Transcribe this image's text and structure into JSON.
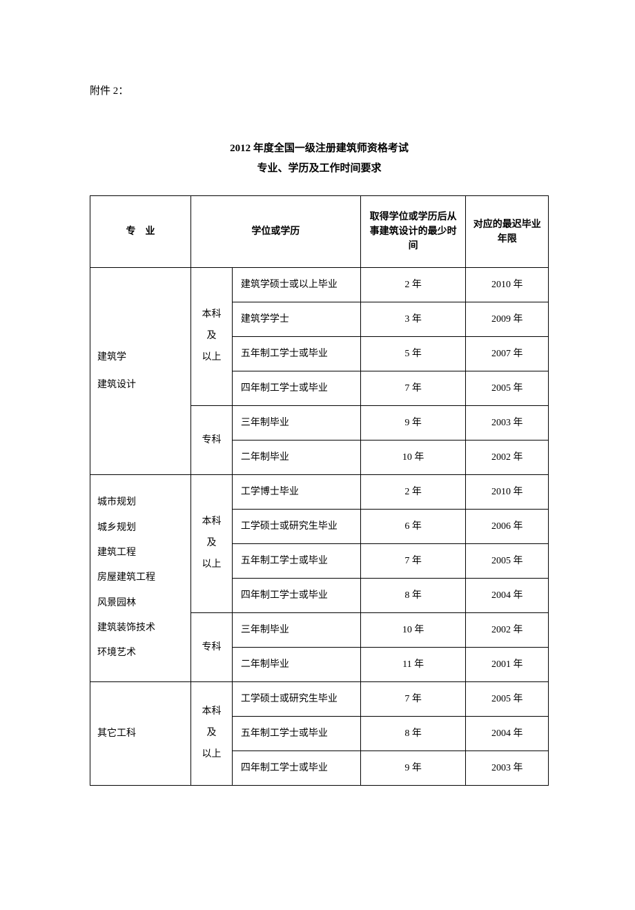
{
  "attachment_label": "附件 2：",
  "title_line1": "2012 年度全国一级注册建筑师资格考试",
  "title_line2": "专业、学历及工作时间要求",
  "header": {
    "major": "专　业",
    "degree": "学位或学历",
    "years": "取得学位或学历后从事建筑设计的最少时间",
    "latest": "对应的最迟毕业年限"
  },
  "degree_levels": {
    "undergrad_l1": "本科",
    "undergrad_l2": "及",
    "undergrad_l3": "以上",
    "college": "专科"
  },
  "groups": [
    {
      "major_lines": [
        "建筑学",
        "建筑设计"
      ],
      "undergrad": [
        {
          "desc": "建筑学硕士或以上毕业",
          "years": "2 年",
          "latest": "2010 年"
        },
        {
          "desc": "建筑学学士",
          "years": "3 年",
          "latest": "2009 年"
        },
        {
          "desc": "五年制工学士或毕业",
          "years": "5 年",
          "latest": "2007 年"
        },
        {
          "desc": "四年制工学士或毕业",
          "years": "7 年",
          "latest": "2005 年"
        }
      ],
      "college": [
        {
          "desc": "三年制毕业",
          "years": "9 年",
          "latest": "2003 年"
        },
        {
          "desc": "二年制毕业",
          "years": "10 年",
          "latest": "2002 年"
        }
      ]
    },
    {
      "major_lines": [
        "城市规划",
        "城乡规划",
        "建筑工程",
        "房屋建筑工程",
        "风景园林",
        "建筑装饰技术",
        "环境艺术"
      ],
      "undergrad": [
        {
          "desc": "工学博士毕业",
          "years": "2 年",
          "latest": "2010 年"
        },
        {
          "desc": "工学硕士或研究生毕业",
          "years": "6 年",
          "latest": "2006 年"
        },
        {
          "desc": "五年制工学士或毕业",
          "years": "7 年",
          "latest": "2005 年"
        },
        {
          "desc": "四年制工学士或毕业",
          "years": "8 年",
          "latest": "2004 年"
        }
      ],
      "college": [
        {
          "desc": "三年制毕业",
          "years": "10 年",
          "latest": "2002 年"
        },
        {
          "desc": "二年制毕业",
          "years": "11 年",
          "latest": "2001 年"
        }
      ]
    },
    {
      "major_lines": [
        "其它工科"
      ],
      "undergrad": [
        {
          "desc": "工学硕士或研究生毕业",
          "years": "7 年",
          "latest": "2005 年"
        },
        {
          "desc": "五年制工学士或毕业",
          "years": "8 年",
          "latest": "2004 年"
        },
        {
          "desc": "四年制工学士或毕业",
          "years": "9 年",
          "latest": "2003 年"
        }
      ],
      "college": []
    }
  ]
}
